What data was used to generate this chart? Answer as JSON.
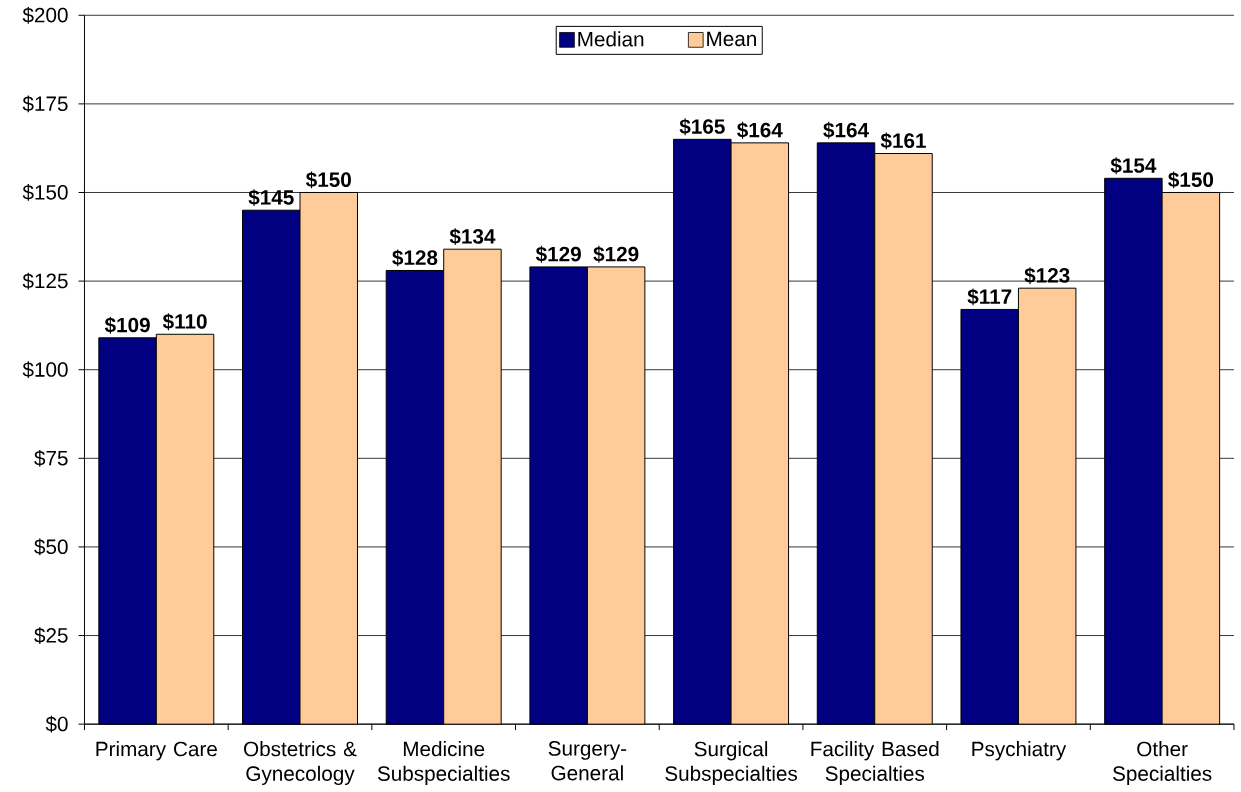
{
  "chart_data": {
    "type": "bar",
    "categories": [
      "Primary Care",
      "Obstetrics & Gynecology",
      "Medicine Subspecialties",
      "Surgery-General",
      "Surgical Subspecialties",
      "Facility Based Specialties",
      "Psychiatry",
      "Other Specialties"
    ],
    "series": [
      {
        "name": "Median",
        "color": "#000080",
        "values": [
          109,
          145,
          128,
          129,
          165,
          164,
          117,
          154
        ],
        "value_labels": [
          "$109",
          "$145",
          "$128",
          "$129",
          "$165",
          "$164",
          "$117",
          "$154"
        ]
      },
      {
        "name": "Mean",
        "color": "#ffcc99",
        "values": [
          110,
          150,
          134,
          129,
          164,
          161,
          123,
          150
        ],
        "value_labels": [
          "$110",
          "$150",
          "$134",
          "$129",
          "$164",
          "$161",
          "$123",
          "$150"
        ]
      }
    ],
    "ylim": [
      0,
      200
    ],
    "yticks": [
      {
        "value": 0,
        "label": "$0"
      },
      {
        "value": 25,
        "label": "$25"
      },
      {
        "value": 50,
        "label": "$50"
      },
      {
        "value": 75,
        "label": "$75"
      },
      {
        "value": 100,
        "label": "$100"
      },
      {
        "value": 125,
        "label": "$125"
      },
      {
        "value": 150,
        "label": "$150"
      },
      {
        "value": 175,
        "label": "$175"
      },
      {
        "value": 200,
        "label": "$200"
      }
    ],
    "grid": "y",
    "legend": "top"
  }
}
